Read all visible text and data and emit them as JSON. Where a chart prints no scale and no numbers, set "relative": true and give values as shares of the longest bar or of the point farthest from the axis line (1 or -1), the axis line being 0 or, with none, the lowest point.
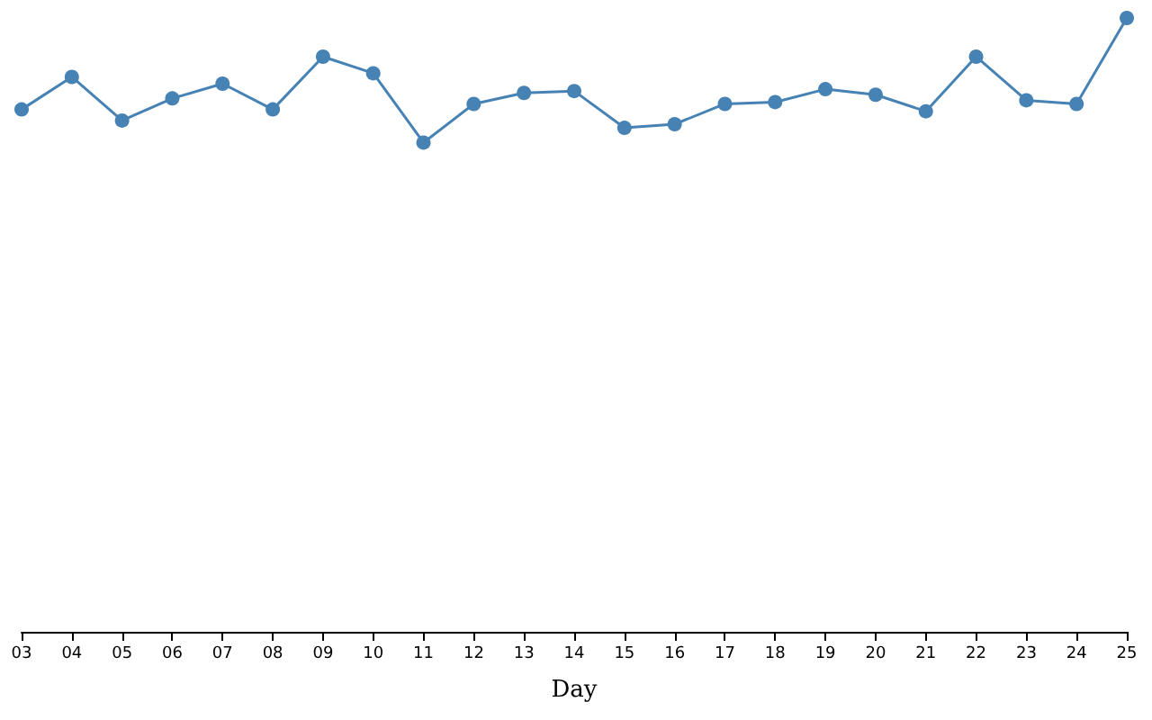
{
  "chart_data": {
    "type": "line",
    "xlabel": "Day",
    "relative": true,
    "marker": "circle",
    "grid": false,
    "categories": [
      "03",
      "04",
      "05",
      "06",
      "07",
      "08",
      "09",
      "10",
      "11",
      "12",
      "13",
      "14",
      "15",
      "16",
      "17",
      "18",
      "19",
      "20",
      "21",
      "22",
      "23",
      "24",
      "25"
    ],
    "series": [
      {
        "color": "#4682b4",
        "values": [
          0.851,
          0.904,
          0.833,
          0.869,
          0.893,
          0.851,
          0.937,
          0.91,
          0.797,
          0.86,
          0.878,
          0.881,
          0.821,
          0.827,
          0.86,
          0.863,
          0.884,
          0.875,
          0.848,
          0.937,
          0.866,
          0.86,
          1
        ]
      }
    ]
  }
}
